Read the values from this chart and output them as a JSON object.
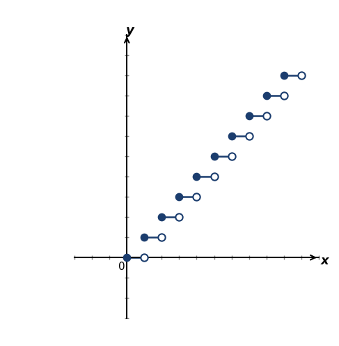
{
  "steps": [
    {
      "x_start": 0,
      "x_end": 1,
      "y": 0
    },
    {
      "x_start": 1,
      "x_end": 2,
      "y": 1
    },
    {
      "x_start": 2,
      "x_end": 3,
      "y": 2
    },
    {
      "x_start": 3,
      "x_end": 4,
      "y": 3
    },
    {
      "x_start": 4,
      "x_end": 5,
      "y": 4
    },
    {
      "x_start": 5,
      "x_end": 6,
      "y": 5
    },
    {
      "x_start": 6,
      "x_end": 7,
      "y": 6
    },
    {
      "x_start": 7,
      "x_end": 8,
      "y": 7
    },
    {
      "x_start": 8,
      "x_end": 9,
      "y": 8
    },
    {
      "x_start": 9,
      "x_end": 10,
      "y": 9
    }
  ],
  "xlim": [
    -3,
    11
  ],
  "ylim": [
    -3,
    11
  ],
  "line_color": "#1b3d6e",
  "closed_dot_color": "#1b3d6e",
  "open_dot_color": "#1b3d6e",
  "dot_size": 55,
  "line_width": 1.8,
  "xlabel": "x",
  "ylabel": "y",
  "origin_label": "0",
  "background_color": "#ffffff",
  "axis_color": "#000000",
  "tick_color": "#888888"
}
